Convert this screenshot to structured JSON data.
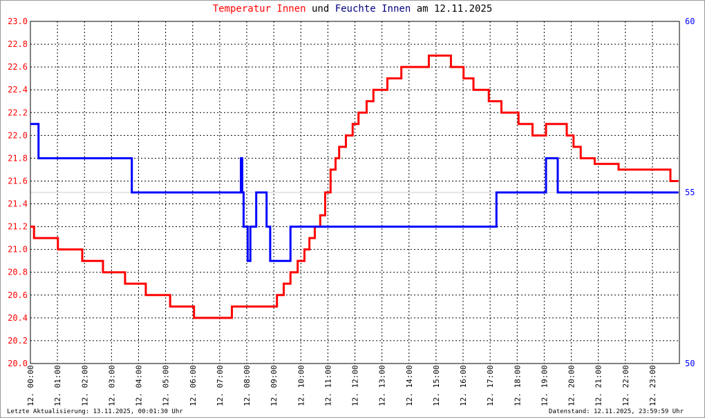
{
  "chart_data": {
    "type": "line",
    "title": {
      "part1": "Temperatur Innen",
      "part2": " und ",
      "part3": "Feuchte Innen",
      "part4": " am 12.11.2025"
    },
    "x_tick_labels": [
      "12. 00:00",
      "12. 01:00",
      "12. 02:00",
      "12. 03:00",
      "12. 04:00",
      "12. 05:00",
      "12. 06:00",
      "12. 07:00",
      "12. 08:00",
      "12. 09:00",
      "12. 10:00",
      "12. 11:00",
      "12. 12:00",
      "12. 13:00",
      "12. 14:00",
      "12. 15:00",
      "12. 16:00",
      "12. 17:00",
      "12. 18:00",
      "12. 19:00",
      "12. 20:00",
      "12. 21:00",
      "12. 22:00",
      "12. 23:00"
    ],
    "xlim": [
      "00:00",
      "24:00"
    ],
    "y_left": {
      "ylim": [
        20.0,
        23.0
      ],
      "ticks": [
        "20.0",
        "20.2",
        "20.4",
        "20.6",
        "20.8",
        "21.0",
        "21.2",
        "21.4",
        "21.6",
        "21.8",
        "22.0",
        "22.2",
        "22.4",
        "22.6",
        "22.8",
        "23.0"
      ],
      "color": "#ff0000"
    },
    "y_right": {
      "ylim": [
        50,
        60
      ],
      "ticks": [
        "50",
        "55",
        "60"
      ],
      "color": "#0000ff"
    },
    "grid": true,
    "series": [
      {
        "name": "Temperatur Innen",
        "axis": "left",
        "color": "#ff0000",
        "points": [
          [
            "00:00",
            21.2
          ],
          [
            "00:08",
            21.1
          ],
          [
            "01:01",
            21.0
          ],
          [
            "01:55",
            20.9
          ],
          [
            "02:41",
            20.8
          ],
          [
            "03:30",
            20.7
          ],
          [
            "04:16",
            20.6
          ],
          [
            "05:10",
            20.5
          ],
          [
            "06:03",
            20.4
          ],
          [
            "07:27",
            20.5
          ],
          [
            "09:07",
            20.6
          ],
          [
            "09:22",
            20.7
          ],
          [
            "09:37",
            20.8
          ],
          [
            "09:53",
            20.9
          ],
          [
            "10:08",
            21.0
          ],
          [
            "10:19",
            21.1
          ],
          [
            "10:31",
            21.2
          ],
          [
            "10:43",
            21.3
          ],
          [
            "10:54",
            21.5
          ],
          [
            "11:06",
            21.7
          ],
          [
            "11:17",
            21.8
          ],
          [
            "11:25",
            21.9
          ],
          [
            "11:40",
            22.0
          ],
          [
            "11:55",
            22.1
          ],
          [
            "12:08",
            22.2
          ],
          [
            "12:26",
            22.3
          ],
          [
            "12:41",
            22.4
          ],
          [
            "13:12",
            22.5
          ],
          [
            "13:43",
            22.6
          ],
          [
            "14:44",
            22.7
          ],
          [
            "15:33",
            22.6
          ],
          [
            "16:01",
            22.5
          ],
          [
            "16:23",
            22.4
          ],
          [
            "16:57",
            22.3
          ],
          [
            "17:25",
            22.2
          ],
          [
            "18:03",
            22.1
          ],
          [
            "18:34",
            22.0
          ],
          [
            "19:04",
            22.1
          ],
          [
            "19:50",
            22.0
          ],
          [
            "20:05",
            21.9
          ],
          [
            "20:21",
            21.8
          ],
          [
            "20:52",
            21.75
          ],
          [
            "21:45",
            21.7
          ],
          [
            "23:40",
            21.6
          ],
          [
            "23:58",
            21.6
          ]
        ]
      },
      {
        "name": "Feuchte Innen",
        "axis": "right",
        "color": "#0000ff",
        "points": [
          [
            "00:00",
            57
          ],
          [
            "00:18",
            56
          ],
          [
            "03:45",
            55
          ],
          [
            "07:47",
            56
          ],
          [
            "07:50",
            55
          ],
          [
            "07:53",
            54
          ],
          [
            "08:02",
            53
          ],
          [
            "08:08",
            54
          ],
          [
            "08:21",
            55
          ],
          [
            "08:44",
            54
          ],
          [
            "08:52",
            53
          ],
          [
            "09:37",
            54
          ],
          [
            "17:14",
            55
          ],
          [
            "19:04",
            56
          ],
          [
            "19:30",
            55
          ],
          [
            "23:58",
            55
          ]
        ]
      }
    ]
  },
  "footer": {
    "last_update": "Letzte Aktualisierung: 13.11.2025, 00:01:30 Uhr",
    "data_state": "Datenstand: 12.11.2025, 23:59:59 Uhr"
  }
}
